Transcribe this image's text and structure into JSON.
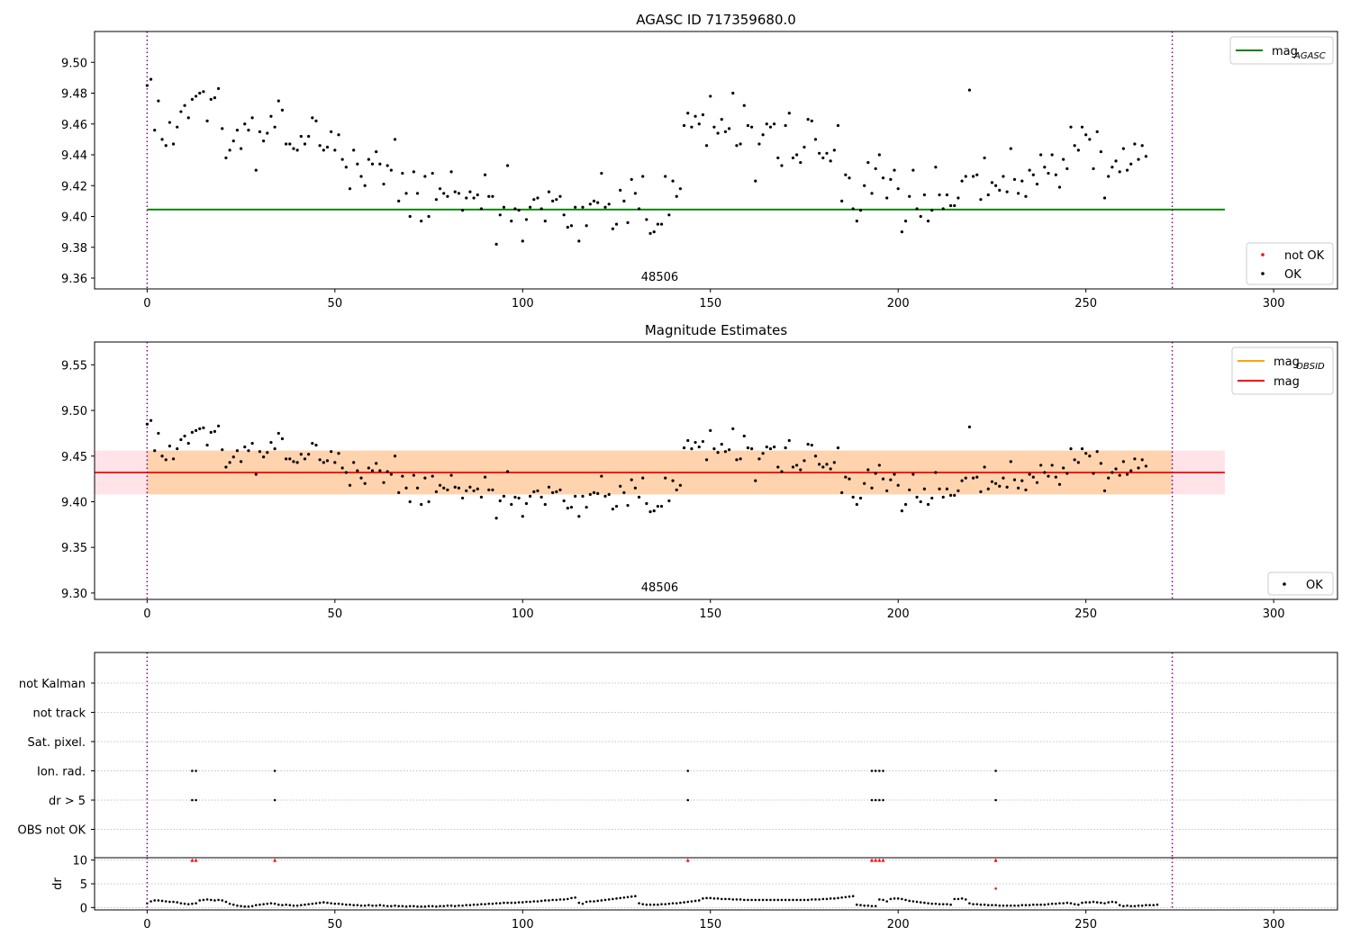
{
  "chart_data": [
    {
      "type": "scatter",
      "title": "AGASC ID 717359680.0",
      "xlabel": "",
      "ylabel": "",
      "xlim": [
        -14,
        317
      ],
      "ylim": [
        9.353,
        9.52
      ],
      "xticks": [
        0,
        50,
        100,
        150,
        200,
        250,
        300
      ],
      "yticks": [
        9.36,
        9.38,
        9.4,
        9.42,
        9.44,
        9.46,
        9.48,
        9.5
      ],
      "ytick_labels": [
        "9.36",
        "9.38",
        "9.40",
        "9.42",
        "9.44",
        "9.46",
        "9.48",
        "9.50"
      ],
      "grid": false,
      "obsid_label": "48506",
      "obsid_label_x": 136.5,
      "obs_boundaries": [
        0,
        273
      ],
      "lines": [
        {
          "name_base": "mag",
          "name_sub": "AGASC",
          "y": 9.4045,
          "x_range": [
            0,
            287
          ],
          "color": "#008000"
        }
      ],
      "line_legend_position": "top-right",
      "point_legend": [
        {
          "label": "not OK",
          "color": "#ff0000"
        },
        {
          "label": "OK",
          "color": "#000000"
        }
      ],
      "point_legend_position": "bottom-right",
      "series_ref": "shared.mag"
    },
    {
      "type": "scatter",
      "title": "Magnitude Estimates",
      "xlabel": "",
      "ylabel": "",
      "xlim": [
        -14,
        317
      ],
      "ylim": [
        9.293,
        9.575
      ],
      "xticks": [
        0,
        50,
        100,
        150,
        200,
        250,
        300
      ],
      "yticks": [
        9.3,
        9.35,
        9.4,
        9.45,
        9.5,
        9.55
      ],
      "ytick_labels": [
        "9.30",
        "9.35",
        "9.40",
        "9.45",
        "9.50",
        "9.55"
      ],
      "grid": false,
      "obsid_label": "48506",
      "obsid_label_x": 136.5,
      "obs_boundaries": [
        0,
        273
      ],
      "bands": [
        {
          "x_range": [
            -14,
            287
          ],
          "y_range": [
            9.408,
            9.456
          ],
          "color": "#ffc0cb",
          "opacity": 0.45
        },
        {
          "x_range": [
            0,
            273
          ],
          "y_range": [
            9.408,
            9.456
          ],
          "color": "#ffa500",
          "opacity": 0.25
        }
      ],
      "lines": [
        {
          "name_base": "mag",
          "name_sub": "OBSID",
          "y": 9.432,
          "x_range": [
            0,
            273
          ],
          "color": "#ffa500"
        },
        {
          "name_base": "mag",
          "name_sub": "",
          "y": 9.432,
          "x_range": [
            -14,
            287
          ],
          "color": "#ff0000"
        }
      ],
      "line_legend_position": "top-right",
      "point_legend": [
        {
          "label": "OK",
          "color": "#000000"
        }
      ],
      "point_legend_position": "bottom-right",
      "series_ref": "shared.mag"
    },
    {
      "type": "scatter",
      "title": "",
      "xlabel": "",
      "ylabel": "",
      "xlim": [
        -14,
        317
      ],
      "xticks": [
        0,
        50,
        100,
        150,
        200,
        250,
        300
      ],
      "obs_boundaries": [
        0,
        273
      ],
      "flag_rows": [
        "not Kalman",
        "not track",
        "Sat. pixel.",
        "Ion. rad.",
        "dr > 5",
        "OBS not OK"
      ],
      "flags": {
        "Ion. rad.": [
          12,
          13,
          34,
          144,
          193,
          194,
          195,
          196,
          226
        ],
        "dr > 5": [
          12,
          13,
          34,
          144,
          193,
          194,
          195,
          196,
          226
        ]
      }
    },
    {
      "type": "scatter",
      "title": "",
      "xlabel": "",
      "ylabel": "dr",
      "xlim": [
        -14,
        317
      ],
      "ylim": [
        -0.5,
        10.5
      ],
      "xticks": [
        0,
        50,
        100,
        150,
        200,
        250,
        300
      ],
      "xtick_labels": [
        "0",
        "50",
        "100",
        "150",
        "200",
        "250",
        "300"
      ],
      "yticks": [
        0,
        5,
        10
      ],
      "ytick_labels": [
        "0",
        "5",
        "10"
      ],
      "grid": true,
      "obs_boundaries": [
        0,
        273
      ],
      "clipped_marker_value": 10,
      "clipped_x": [
        12,
        13,
        34,
        144,
        193,
        194,
        195,
        196,
        226
      ],
      "extra_red_points": [
        {
          "x": 226,
          "y": 4
        }
      ],
      "dr_values": [
        0.9,
        1.3,
        1.5,
        1.5,
        1.4,
        1.3,
        1.2,
        1.2,
        1.1,
        0.9,
        0.8,
        0.7,
        0.8,
        0.9,
        1.5,
        1.6,
        1.7,
        1.6,
        1.5,
        1.6,
        1.5,
        1.2,
        0.8,
        0.6,
        0.4,
        0.3,
        0.2,
        0.2,
        0.3,
        0.5,
        0.6,
        0.7,
        0.8,
        0.9,
        0.8,
        0.6,
        0.5,
        0.6,
        0.5,
        0.4,
        0.4,
        0.5,
        0.6,
        0.7,
        0.8,
        0.9,
        1.0,
        1.1,
        1.0,
        0.9,
        0.8,
        0.8,
        0.7,
        0.6,
        0.6,
        0.5,
        0.5,
        0.4,
        0.4,
        0.5,
        0.4,
        0.4,
        0.5,
        0.4,
        0.3,
        0.3,
        0.4,
        0.3,
        0.3,
        0.2,
        0.3,
        0.3,
        0.2,
        0.2,
        0.2,
        0.3,
        0.3,
        0.2,
        0.3,
        0.3,
        0.4,
        0.4,
        0.3,
        0.4,
        0.4,
        0.5,
        0.5,
        0.6,
        0.6,
        0.7,
        0.7,
        0.8,
        0.8,
        0.9,
        0.9,
        1.0,
        1.0,
        1.0,
        1.0,
        1.1,
        1.1,
        1.2,
        1.2,
        1.3,
        1.3,
        1.4,
        1.5,
        1.5,
        1.6,
        1.6,
        1.7,
        1.7,
        1.8,
        2.0,
        2.1,
        1.0,
        0.8,
        1.2,
        1.3,
        1.3,
        1.4,
        1.5,
        1.6,
        1.7,
        1.8,
        1.9,
        2.0,
        2.1,
        2.2,
        2.3,
        2.4,
        0.9,
        0.7,
        0.6,
        0.6,
        0.6,
        0.6,
        0.7,
        0.7,
        0.8,
        0.9,
        0.9,
        1.0,
        1.1,
        1.2,
        1.3,
        1.4,
        1.5,
        1.9,
        2.0,
        2.0,
        1.9,
        1.9,
        1.8,
        1.8,
        1.8,
        1.7,
        1.7,
        1.7,
        1.6,
        1.6,
        1.6,
        1.6,
        1.6,
        1.6,
        1.6,
        1.6,
        1.6,
        1.6,
        1.6,
        1.6,
        1.6,
        1.6,
        1.6,
        1.6,
        1.6,
        1.6,
        1.7,
        1.7,
        1.7,
        1.8,
        1.8,
        1.9,
        1.9,
        2.0,
        2.1,
        2.2,
        2.3,
        2.4,
        0.6,
        0.5,
        0.4,
        0.4,
        0.3,
        0.3,
        1.7,
        1.6,
        1.3,
        1.8,
        1.9,
        1.9,
        1.8,
        1.6,
        1.4,
        1.3,
        1.2,
        1.1,
        1.0,
        0.9,
        0.8,
        0.8,
        0.7,
        0.7,
        0.7,
        0.6,
        1.8,
        1.8,
        1.9,
        1.7,
        0.9,
        0.7,
        0.7,
        0.6,
        0.6,
        0.5,
        0.5,
        0.5,
        0.4,
        0.4,
        0.4,
        0.4,
        0.4,
        0.4,
        0.5,
        0.5,
        0.5,
        0.6,
        0.6,
        0.6,
        0.6,
        0.7,
        0.8,
        0.8,
        0.9,
        0.9,
        1.0,
        0.9,
        0.7,
        0.6,
        1.0,
        1.1,
        1.1,
        1.2,
        1.1,
        1.0,
        0.9,
        1.1,
        1.2,
        1.1,
        0.5,
        0.3,
        0.4,
        0.3,
        0.3,
        0.4,
        0.4,
        0.5,
        0.5,
        0.5,
        0.6
      ]
    }
  ],
  "shared": {
    "mag": {
      "x_start": 0,
      "ok_values": [
        9.485,
        9.489,
        9.456,
        9.475,
        9.45,
        9.446,
        9.461,
        9.447,
        9.458,
        9.468,
        9.472,
        9.464,
        9.476,
        9.478,
        9.48,
        9.481,
        9.462,
        9.476,
        9.477,
        9.483,
        9.457,
        9.438,
        9.443,
        9.449,
        9.456,
        9.444,
        9.46,
        9.456,
        9.464,
        9.43,
        9.455,
        9.449,
        9.454,
        9.465,
        9.458,
        9.475,
        9.469,
        9.447,
        9.447,
        9.444,
        9.443,
        9.452,
        9.447,
        9.452,
        9.464,
        9.462,
        9.446,
        9.443,
        9.445,
        9.455,
        9.443,
        9.453,
        9.437,
        9.432,
        9.418,
        9.443,
        9.434,
        9.426,
        9.42,
        9.437,
        9.434,
        9.442,
        9.434,
        9.421,
        9.433,
        9.43,
        9.45,
        9.41,
        9.428,
        9.415,
        9.4,
        9.429,
        9.415,
        9.397,
        9.426,
        9.4,
        9.428,
        9.411,
        9.418,
        9.415,
        9.413,
        9.429,
        9.416,
        9.415,
        9.404,
        9.412,
        9.416,
        9.412,
        9.414,
        9.405,
        9.427,
        9.413,
        9.413,
        9.382,
        9.401,
        9.406,
        9.433,
        9.397,
        9.405,
        9.404,
        9.384,
        9.398,
        9.406,
        9.411,
        9.412,
        9.405,
        9.397,
        9.416,
        9.41,
        9.411,
        9.413,
        9.401,
        9.393,
        9.394,
        9.406,
        9.384,
        9.406,
        9.394,
        9.408,
        9.41,
        9.409,
        9.428,
        9.406,
        9.408,
        9.392,
        9.395,
        9.417,
        9.41,
        9.396,
        9.424,
        9.415,
        9.405,
        9.426,
        9.398,
        9.389,
        9.39,
        9.395,
        9.395,
        9.426,
        9.401,
        9.423,
        9.413,
        9.418,
        9.459,
        9.467,
        9.458,
        9.465,
        9.46,
        9.466,
        9.446,
        9.478,
        9.458,
        9.454,
        9.463,
        9.455,
        9.457,
        9.48,
        9.446,
        9.447,
        9.472,
        9.459,
        9.458,
        9.423,
        9.447,
        9.453,
        9.46,
        9.458,
        9.46,
        9.438,
        9.433,
        9.459,
        9.467,
        9.438,
        9.44,
        9.435,
        9.445,
        9.463,
        9.462,
        9.45,
        9.441,
        9.438,
        9.441,
        9.436,
        9.443,
        9.459,
        9.41,
        9.427,
        9.425,
        9.405,
        9.397,
        9.404,
        9.42,
        9.435,
        9.415,
        9.431,
        9.44,
        9.425,
        9.412,
        9.424,
        9.43,
        9.418,
        9.39,
        9.397,
        9.413,
        9.43,
        9.405,
        9.4,
        9.414,
        9.397,
        9.404,
        9.432,
        9.414,
        9.405,
        9.414,
        9.407,
        9.407,
        9.412,
        9.423,
        9.426,
        9.482,
        9.426,
        9.427,
        9.411,
        9.438,
        9.414,
        9.422,
        9.42,
        9.417,
        9.426,
        9.416,
        9.444,
        9.424,
        9.415,
        9.423,
        9.413,
        9.43,
        9.427,
        9.421,
        9.44,
        9.432,
        9.428,
        9.44,
        9.427,
        9.419,
        9.437,
        9.431,
        9.458,
        9.446,
        9.443,
        9.458,
        9.453,
        9.45,
        9.431,
        9.455,
        9.442,
        9.412,
        9.426,
        9.432,
        9.436,
        9.429,
        9.444,
        9.43,
        9.434,
        9.447,
        9.437,
        9.446,
        9.439
      ]
    }
  }
}
